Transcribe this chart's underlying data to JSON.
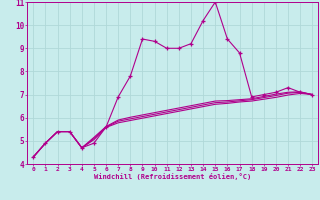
{
  "xlabel": "Windchill (Refroidissement éolien,°C)",
  "bg_color": "#c8ecec",
  "grid_color": "#b0d8d8",
  "line_color": "#b0008c",
  "xlim": [
    -0.5,
    23.5
  ],
  "ylim": [
    4,
    11
  ],
  "xticks": [
    0,
    1,
    2,
    3,
    4,
    5,
    6,
    7,
    8,
    9,
    10,
    11,
    12,
    13,
    14,
    15,
    16,
    17,
    18,
    19,
    20,
    21,
    22,
    23
  ],
  "yticks": [
    4,
    5,
    6,
    7,
    8,
    9,
    10,
    11
  ],
  "series": [
    [
      4.3,
      4.9,
      5.4,
      5.4,
      4.7,
      4.9,
      5.6,
      6.9,
      7.8,
      9.4,
      9.3,
      9.0,
      9.0,
      9.2,
      10.2,
      11.0,
      9.4,
      8.8,
      6.9,
      7.0,
      7.1,
      7.3,
      7.1,
      7.0
    ],
    [
      4.3,
      4.9,
      5.4,
      5.4,
      4.7,
      5.05,
      5.58,
      5.78,
      5.88,
      5.98,
      6.08,
      6.18,
      6.28,
      6.38,
      6.48,
      6.58,
      6.62,
      6.68,
      6.72,
      6.8,
      6.88,
      6.98,
      7.05,
      7.0
    ],
    [
      4.3,
      4.9,
      5.4,
      5.4,
      4.7,
      5.1,
      5.6,
      5.85,
      5.95,
      6.05,
      6.15,
      6.25,
      6.35,
      6.45,
      6.55,
      6.65,
      6.68,
      6.73,
      6.78,
      6.87,
      6.96,
      7.06,
      7.1,
      7.0
    ],
    [
      4.3,
      4.9,
      5.4,
      5.4,
      4.7,
      5.15,
      5.62,
      5.9,
      6.02,
      6.12,
      6.22,
      6.32,
      6.42,
      6.52,
      6.62,
      6.72,
      6.74,
      6.78,
      6.82,
      6.92,
      7.02,
      7.1,
      7.12,
      7.0
    ]
  ]
}
